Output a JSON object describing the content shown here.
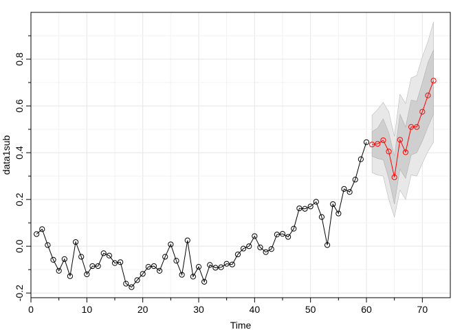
{
  "chart_data": {
    "type": "line",
    "title": "",
    "xlabel": "Time",
    "ylabel": "data1sub",
    "xlim": [
      0,
      75
    ],
    "ylim": [
      -0.22,
      1.0
    ],
    "x_ticks": [
      0,
      10,
      20,
      30,
      40,
      50,
      60,
      70
    ],
    "x_tick_labels": [
      "0",
      "10",
      "20",
      "30",
      "40",
      "50",
      "60",
      "70"
    ],
    "y_ticks": [
      -0.2,
      0.0,
      0.2,
      0.4,
      0.6,
      0.8
    ],
    "y_tick_labels": [
      "-0.2",
      "0.0",
      "0.2",
      "0.4",
      "0.6",
      "0.8"
    ],
    "grid": true,
    "colors": {
      "observed": "#000000",
      "forecast": "#ff0000",
      "band_outer": "#e8e8e8",
      "band_inner": "#cfcfcf",
      "grid": "#e5e5e5"
    },
    "series": [
      {
        "x": [
          1,
          2,
          3,
          4,
          5,
          6,
          7,
          8,
          9,
          10,
          11,
          12,
          13,
          14,
          15,
          16,
          17,
          18,
          19,
          20,
          21,
          22,
          23,
          24,
          25,
          26,
          27,
          28,
          29,
          30,
          31,
          32,
          33,
          34,
          35,
          36,
          37,
          38,
          39,
          40,
          41,
          42,
          43,
          44,
          45,
          46,
          47,
          48,
          49,
          50,
          51,
          52,
          53,
          54,
          55,
          56,
          57,
          58,
          59,
          60
        ],
        "values": [
          0.052,
          0.073,
          0.005,
          -0.058,
          -0.105,
          -0.055,
          -0.128,
          0.018,
          -0.045,
          -0.12,
          -0.085,
          -0.085,
          -0.03,
          -0.04,
          -0.072,
          -0.068,
          -0.16,
          -0.175,
          -0.145,
          -0.118,
          -0.088,
          -0.085,
          -0.105,
          -0.045,
          0.008,
          -0.062,
          -0.122,
          0.025,
          -0.13,
          -0.088,
          -0.152,
          -0.08,
          -0.092,
          -0.09,
          -0.075,
          -0.078,
          -0.035,
          -0.01,
          0.0,
          0.043,
          -0.005,
          -0.025,
          -0.012,
          0.05,
          0.053,
          0.04,
          0.075,
          0.162,
          0.16,
          0.17,
          0.19,
          0.125,
          0.005,
          0.18,
          0.14,
          0.245,
          0.232,
          0.285,
          0.372,
          0.445
        ]
      },
      {
        "x": [
          61,
          62,
          63,
          64,
          65,
          66,
          67,
          68,
          69,
          70,
          71,
          72
        ],
        "values": [
          0.435,
          0.438,
          0.453,
          0.405,
          0.295,
          0.455,
          0.402,
          0.51,
          0.51,
          0.575,
          0.645,
          0.708
        ]
      }
    ],
    "forecast_bands": {
      "x": [
        61,
        62,
        63,
        64,
        65,
        66,
        67,
        68,
        69,
        70,
        71,
        72
      ],
      "inner_low": [
        0.385,
        0.375,
        0.37,
        0.29,
        0.18,
        0.33,
        0.29,
        0.39,
        0.4,
        0.45,
        0.51,
        0.565
      ],
      "inner_high": [
        0.49,
        0.505,
        0.545,
        0.485,
        0.385,
        0.565,
        0.51,
        0.625,
        0.62,
        0.7,
        0.785,
        0.84
      ],
      "outer_low": [
        0.315,
        0.305,
        0.3,
        0.2,
        0.125,
        0.24,
        0.2,
        0.305,
        0.3,
        0.355,
        0.405,
        0.445
      ],
      "outer_high": [
        0.56,
        0.585,
        0.615,
        0.575,
        0.47,
        0.65,
        0.61,
        0.72,
        0.73,
        0.81,
        0.875,
        0.96
      ]
    }
  }
}
